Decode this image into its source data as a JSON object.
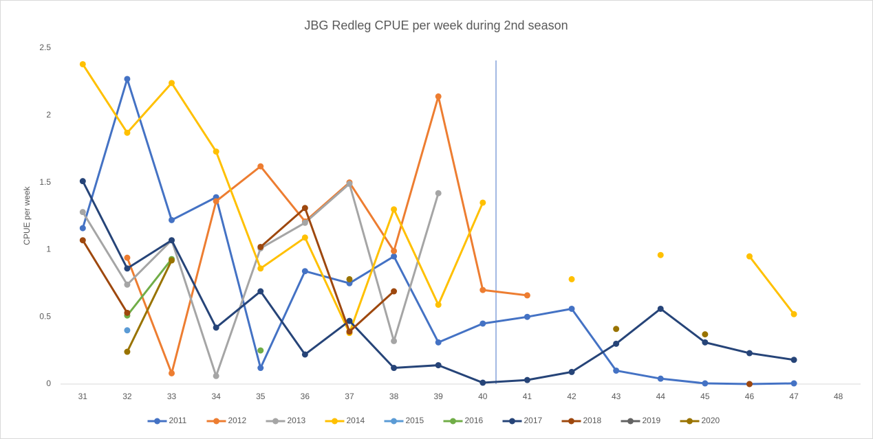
{
  "chart_data": {
    "type": "line",
    "title": "JBG Redleg CPUE per week during 2nd season",
    "y_label": "CPUE per week",
    "categories": [
      "31",
      "32",
      "33",
      "34",
      "35",
      "36",
      "37",
      "38",
      "39",
      "40",
      "41",
      "42",
      "43",
      "44",
      "45",
      "46",
      "47",
      "48"
    ],
    "ylim": [
      0,
      2.5
    ],
    "yticks": [
      0,
      0.5,
      1,
      1.5,
      2,
      2.5
    ],
    "grid": false,
    "legend": "bottom",
    "series": [
      {
        "name": "2011",
        "color": "#4472c4",
        "values": [
          1.16,
          2.27,
          1.22,
          1.39,
          0.12,
          0.84,
          0.75,
          0.95,
          0.31,
          0.45,
          0.5,
          0.56,
          0.1,
          0.04,
          0.005,
          0.0,
          0.005,
          null
        ]
      },
      {
        "name": "2012",
        "color": "#ed7d31",
        "values": [
          null,
          0.94,
          0.08,
          1.36,
          1.62,
          1.21,
          1.5,
          0.99,
          2.14,
          0.7,
          0.66,
          null,
          null,
          null,
          null,
          null,
          null,
          null
        ]
      },
      {
        "name": "2013",
        "color": "#a5a5a5",
        "values": [
          1.28,
          0.74,
          1.07,
          0.06,
          1.01,
          1.2,
          1.49,
          0.32,
          1.42,
          null,
          null,
          null,
          null,
          null,
          null,
          null,
          null,
          null
        ]
      },
      {
        "name": "2014",
        "color": "#ffc000",
        "values": [
          2.38,
          1.87,
          2.24,
          1.73,
          0.86,
          1.09,
          0.38,
          1.3,
          0.59,
          1.35,
          null,
          0.78,
          null,
          0.96,
          null,
          0.95,
          0.52,
          null
        ]
      },
      {
        "name": "2015",
        "color": "#5b9bd5",
        "values": [
          null,
          0.4,
          null,
          null,
          null,
          null,
          null,
          null,
          null,
          null,
          null,
          null,
          null,
          null,
          null,
          null,
          null,
          null
        ]
      },
      {
        "name": "2016",
        "color": "#70ad47",
        "values": [
          null,
          0.51,
          0.93,
          null,
          0.25,
          null,
          null,
          null,
          null,
          null,
          null,
          null,
          null,
          null,
          null,
          null,
          null,
          null
        ]
      },
      {
        "name": "2017",
        "color": "#264478",
        "values": [
          1.51,
          0.86,
          1.07,
          0.42,
          0.69,
          0.22,
          0.47,
          0.12,
          0.14,
          0.01,
          0.03,
          0.09,
          0.3,
          0.56,
          0.31,
          0.23,
          0.18,
          null
        ]
      },
      {
        "name": "2018",
        "color": "#9e480e",
        "values": [
          1.07,
          0.53,
          null,
          null,
          1.02,
          1.31,
          0.39,
          0.69,
          null,
          null,
          null,
          null,
          null,
          null,
          null,
          0.0,
          null,
          null
        ]
      },
      {
        "name": "2019",
        "color": "#636363",
        "values": [
          null,
          null,
          null,
          null,
          null,
          null,
          null,
          null,
          null,
          null,
          null,
          null,
          null,
          null,
          null,
          null,
          null,
          null
        ]
      },
      {
        "name": "2020",
        "color": "#997300",
        "values": [
          null,
          0.24,
          0.92,
          null,
          null,
          null,
          0.78,
          null,
          null,
          null,
          null,
          null,
          0.41,
          null,
          0.37,
          null,
          null,
          null
        ]
      }
    ]
  }
}
